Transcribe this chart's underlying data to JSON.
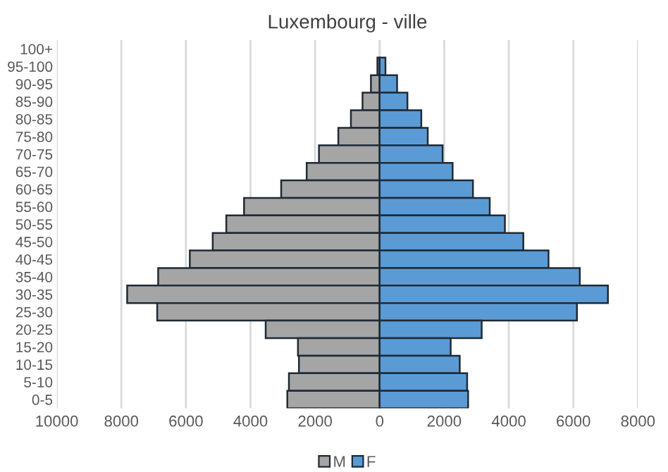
{
  "chart_data": {
    "type": "bar",
    "orientation": "horizontal",
    "title": "Luxembourg - ville",
    "categories": [
      "100+",
      "95-100",
      "90-95",
      "85-90",
      "80-85",
      "75-80",
      "70-75",
      "65-70",
      "60-65",
      "55-60",
      "50-55",
      "45-50",
      "40-45",
      "35-40",
      "30-35",
      "25-30",
      "20-25",
      "15-20",
      "10-15",
      "5-10",
      "0-5"
    ],
    "series": [
      {
        "name": "M",
        "color": "#a5a5a5",
        "values": [
          null,
          -70,
          -270,
          -530,
          -890,
          -1280,
          -1880,
          -2260,
          -3050,
          -4200,
          -4750,
          -5170,
          -5880,
          -6860,
          -7820,
          -6890,
          -3530,
          -2530,
          -2500,
          -2810,
          -2860
        ]
      },
      {
        "name": "F",
        "color": "#5b9bd5",
        "values": [
          null,
          180,
          540,
          860,
          1290,
          1490,
          1950,
          2260,
          2890,
          3410,
          3880,
          4450,
          5230,
          6200,
          7070,
          6110,
          3160,
          2200,
          2480,
          2710,
          2740
        ]
      }
    ],
    "xlim": [
      -10000,
      8000
    ],
    "xticks": [
      {
        "value": -10000,
        "label": "10000"
      },
      {
        "value": -8000,
        "label": "8000"
      },
      {
        "value": -6000,
        "label": "6000"
      },
      {
        "value": -4000,
        "label": "4000"
      },
      {
        "value": -2000,
        "label": "2000"
      },
      0,
      2000,
      4000,
      6000,
      8000
    ],
    "stacked": true,
    "grid": "x",
    "legend": "bottom"
  }
}
